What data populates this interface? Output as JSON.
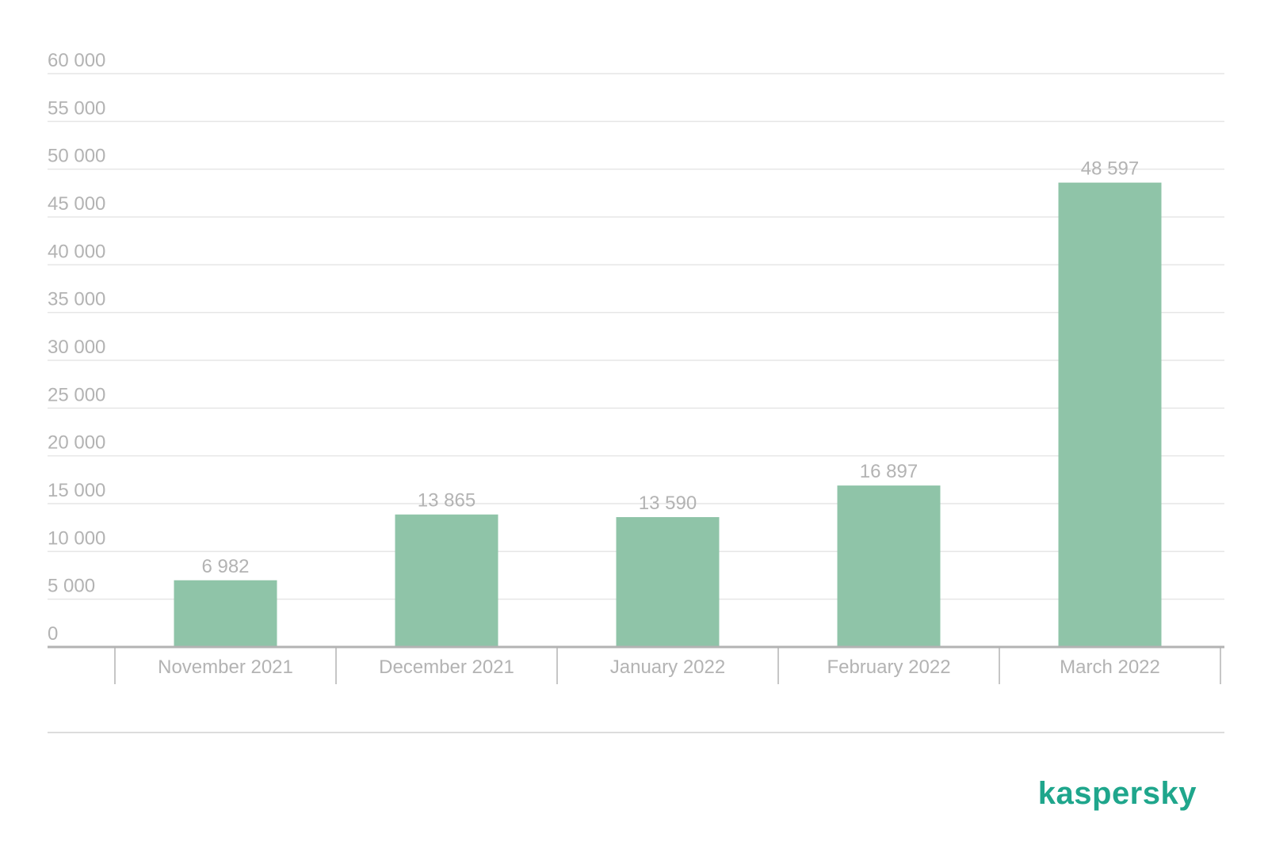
{
  "brand": {
    "logo_text": "kaspersky",
    "logo_color": "#1fa68c"
  },
  "colors": {
    "bar": "#8fc4a8",
    "text": "#b3b3b3",
    "grid": "#e6e6e6",
    "axis": "#b3b3b3"
  },
  "chart_data": {
    "type": "bar",
    "title": "",
    "xlabel": "",
    "ylabel": "",
    "categories": [
      "November 2021",
      "December 2021",
      "January 2022",
      "February 2022",
      "March 2022"
    ],
    "values": [
      6982,
      13865,
      13590,
      16897,
      48597
    ],
    "value_labels": [
      "6 982",
      "13 865",
      "13 590",
      "16 897",
      "48 597"
    ],
    "ylim": [
      0,
      60000
    ],
    "yticks": [
      0,
      5000,
      10000,
      15000,
      20000,
      25000,
      30000,
      35000,
      40000,
      45000,
      50000,
      55000,
      60000
    ],
    "ytick_labels": [
      "0",
      "5 000",
      "10 000",
      "15 000",
      "20 000",
      "25 000",
      "30 000",
      "35 000",
      "40 000",
      "45 000",
      "50 000",
      "55 000",
      "60 000"
    ],
    "grid": true,
    "legend": "none"
  }
}
